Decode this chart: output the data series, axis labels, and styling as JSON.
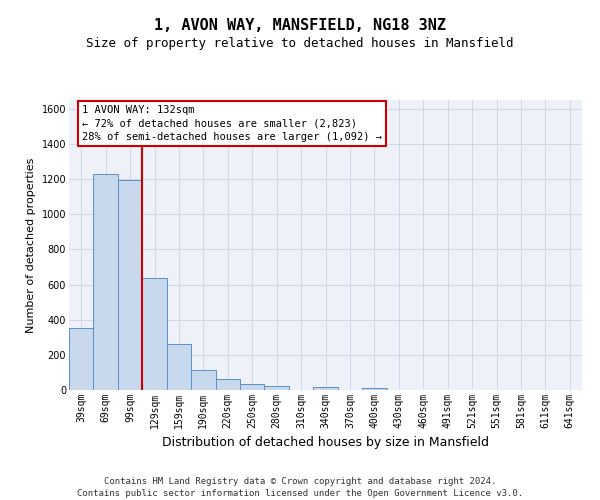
{
  "title": "1, AVON WAY, MANSFIELD, NG18 3NZ",
  "subtitle": "Size of property relative to detached houses in Mansfield",
  "xlabel": "Distribution of detached houses by size in Mansfield",
  "ylabel": "Number of detached properties",
  "categories": [
    "39sqm",
    "69sqm",
    "99sqm",
    "129sqm",
    "159sqm",
    "190sqm",
    "220sqm",
    "250sqm",
    "280sqm",
    "310sqm",
    "340sqm",
    "370sqm",
    "400sqm",
    "430sqm",
    "460sqm",
    "491sqm",
    "521sqm",
    "551sqm",
    "581sqm",
    "611sqm",
    "641sqm"
  ],
  "bar_heights": [
    355,
    1230,
    1195,
    640,
    260,
    115,
    65,
    35,
    22,
    0,
    15,
    0,
    10,
    0,
    0,
    0,
    0,
    0,
    0,
    0,
    0
  ],
  "bar_color": "#c9d9ed",
  "bar_edge_color": "#5b8fc9",
  "property_line_color": "#cc0000",
  "annotation_text": "1 AVON WAY: 132sqm\n← 72% of detached houses are smaller (2,823)\n28% of semi-detached houses are larger (1,092) →",
  "annotation_box_color": "#ffffff",
  "annotation_box_edge_color": "#cc0000",
  "ylim": [
    0,
    1650
  ],
  "yticks": [
    0,
    200,
    400,
    600,
    800,
    1000,
    1200,
    1400,
    1600
  ],
  "grid_color": "#d0d8e8",
  "background_color": "#eef2f8",
  "footer": "Contains HM Land Registry data © Crown copyright and database right 2024.\nContains public sector information licensed under the Open Government Licence v3.0.",
  "title_fontsize": 11,
  "subtitle_fontsize": 9,
  "xlabel_fontsize": 9,
  "ylabel_fontsize": 8,
  "tick_fontsize": 7,
  "footer_fontsize": 6.5,
  "annotation_fontsize": 7.5
}
